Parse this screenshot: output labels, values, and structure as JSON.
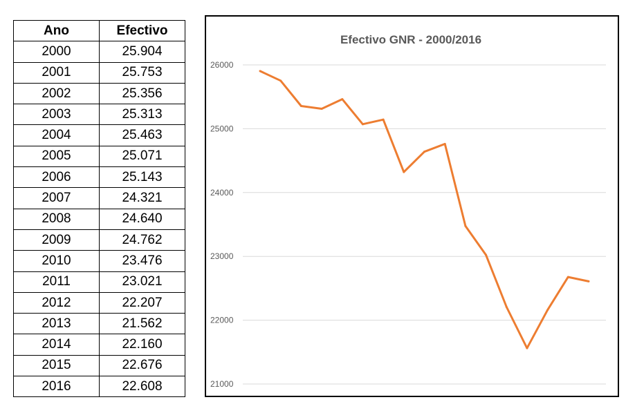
{
  "table": {
    "headers": [
      "Ano",
      "Efectivo"
    ],
    "rows": [
      [
        "2000",
        "25.904"
      ],
      [
        "2001",
        "25.753"
      ],
      [
        "2002",
        "25.356"
      ],
      [
        "2003",
        "25.313"
      ],
      [
        "2004",
        "25.463"
      ],
      [
        "2005",
        "25.071"
      ],
      [
        "2006",
        "25.143"
      ],
      [
        "2007",
        "24.321"
      ],
      [
        "2008",
        "24.640"
      ],
      [
        "2009",
        "24.762"
      ],
      [
        "2010",
        "23.476"
      ],
      [
        "2011",
        "23.021"
      ],
      [
        "2012",
        "22.207"
      ],
      [
        "2013",
        "21.562"
      ],
      [
        "2014",
        "22.160"
      ],
      [
        "2015",
        "22.676"
      ],
      [
        "2016",
        "22.608"
      ]
    ]
  },
  "chart_data": {
    "type": "line",
    "title": "Efectivo GNR - 2000/2016",
    "xlabel": "",
    "ylabel": "",
    "x": [
      2000,
      2001,
      2002,
      2003,
      2004,
      2005,
      2006,
      2007,
      2008,
      2009,
      2010,
      2011,
      2012,
      2013,
      2014,
      2015,
      2016
    ],
    "series": [
      {
        "values": [
          25904,
          25753,
          25356,
          25313,
          25463,
          25071,
          25143,
          24321,
          24640,
          24762,
          23476,
          23021,
          22207,
          21562,
          22160,
          22676,
          22608
        ],
        "color": "#ed7d31"
      }
    ],
    "ylim": [
      21000,
      26000
    ],
    "yticks": [
      "21000",
      "22000",
      "23000",
      "24000",
      "25000",
      "26000"
    ],
    "grid": true,
    "legend": "none",
    "x_tick_labels_shown": false
  }
}
